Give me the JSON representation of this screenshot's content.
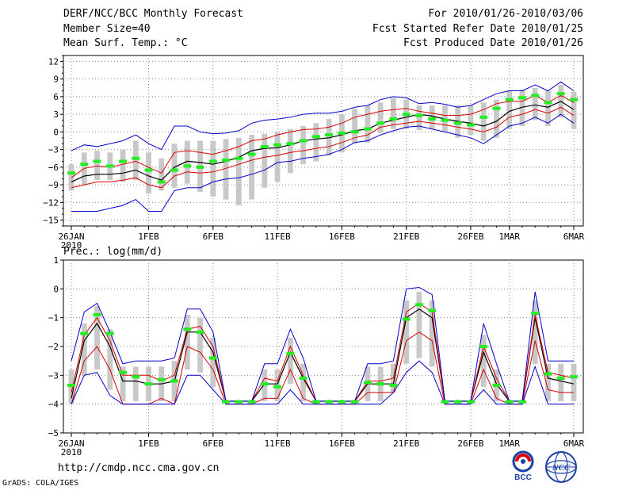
{
  "header": {
    "title": "DERF/NCC/BCC Monthly Forecast",
    "member_size": "Member Size=40",
    "variable": "Mean Surf. Temp.: °C",
    "period": "For 2010/01/26-2010/03/06",
    "refer_date": "Fcst Started Refer Date 2010/01/25",
    "produced_date": "Fcst Produced Date 2010/01/26"
  },
  "footer": {
    "url": "http://cmdp.ncc.cma.gov.cn",
    "credit": "GrADS: COLA/IGES",
    "logo_bcc": "BCC",
    "logo_ncc": "NCC"
  },
  "colors": {
    "ensemble_bar": "#c8c8c8",
    "mean_line": "#000000",
    "inner_band": "#d80000",
    "outer_band": "#0000d0",
    "green_marker": "#22ee22",
    "grid": "#888888"
  },
  "chart_data": [
    {
      "type": "line",
      "title": "Mean Surf. Temp.: °C",
      "x_ticks": [
        "26JAN",
        "1FEB",
        "6FEB",
        "11FEB",
        "16FEB",
        "21FEB",
        "26FEB",
        "1MAR",
        "6MAR"
      ],
      "x_tick_day_index": [
        0,
        6,
        11,
        16,
        21,
        26,
        31,
        34,
        39
      ],
      "x_sublabel": "2010",
      "ylim": [
        -16,
        13
      ],
      "y_ticks": [
        12,
        9,
        6,
        3,
        0,
        -3,
        -6,
        -9,
        -12,
        -15
      ],
      "y_tick_labels": [
        "12",
        "9",
        "6",
        "3",
        "0",
        "−3",
        "−6",
        "−9",
        "−12",
        "−15"
      ],
      "ylabel": "",
      "series": [
        {
          "name": "ensemble mean",
          "color": "#000000",
          "values": [
            -8.5,
            -7.5,
            -7.2,
            -7.2,
            -7.0,
            -6.5,
            -7.5,
            -8.2,
            -6,
            -5,
            -5.2,
            -5.5,
            -5,
            -4.3,
            -3.2,
            -2.8,
            -2.7,
            -2.2,
            -1.5,
            -1.2,
            -1,
            -0.5,
            0.2,
            0.5,
            1.5,
            2,
            2.5,
            3,
            2.7,
            2.2,
            1.8,
            1.5,
            1,
            1.8,
            3.5,
            4.2,
            4.6,
            4.2,
            5.2,
            3.8
          ]
        },
        {
          "name": "upper red",
          "color": "#d80000",
          "values": [
            -7.8,
            -6.2,
            -5.8,
            -6.0,
            -5.5,
            -5.0,
            -6.0,
            -7.0,
            -3.5,
            -3.2,
            -3.5,
            -3.8,
            -3.2,
            -2.5,
            -1.5,
            -1.2,
            -0.5,
            0,
            0.4,
            0.5,
            0.8,
            1.5,
            2.5,
            3,
            3.5,
            3.8,
            4,
            3.5,
            3.2,
            2.8,
            2.8,
            3,
            3.8,
            4.8,
            5.2,
            5.2,
            6.2,
            5,
            6.2,
            5
          ]
        },
        {
          "name": "lower red",
          "color": "#d80000",
          "values": [
            -9.5,
            -9,
            -8.5,
            -8.5,
            -8.2,
            -7.8,
            -9,
            -9.5,
            -7.5,
            -6.8,
            -7,
            -6.8,
            -6.2,
            -5.5,
            -4.8,
            -4.3,
            -4,
            -3.5,
            -3.2,
            -2.8,
            -2.5,
            -1.8,
            -1,
            -0.5,
            0.8,
            1.2,
            1.5,
            1.8,
            1.5,
            1.2,
            0.8,
            0.5,
            0,
            0.8,
            2.5,
            3,
            3.8,
            3.2,
            4.2,
            2.8
          ]
        },
        {
          "name": "upper blue",
          "color": "#0000d0",
          "values": [
            -3.2,
            -2.2,
            -2.5,
            -2,
            -1.5,
            -0.5,
            -2,
            -3,
            1,
            1,
            0,
            -0.3,
            -0.2,
            0.2,
            1.5,
            2,
            2.2,
            2.5,
            3,
            3.2,
            3.2,
            3.5,
            4.2,
            4.5,
            5.5,
            6,
            5.8,
            4.8,
            5,
            4.7,
            4.2,
            4.5,
            5.5,
            6.5,
            7,
            7,
            8,
            7,
            8.5,
            7
          ]
        },
        {
          "name": "lower blue",
          "color": "#0000d0",
          "values": [
            -13.5,
            -13.5,
            -13.5,
            -13,
            -12.5,
            -11.5,
            -13.5,
            -13.5,
            -10,
            -9.5,
            -9.5,
            -8.5,
            -8,
            -7.8,
            -7.2,
            -6.5,
            -5.2,
            -5,
            -4.5,
            -4.2,
            -3.8,
            -3,
            -1.8,
            -1.5,
            -0.5,
            0.2,
            0.8,
            1,
            0.5,
            0,
            -0.5,
            -1,
            -2,
            -0.5,
            1,
            1.5,
            2.5,
            1.5,
            3,
            1.5
          ]
        },
        {
          "name": "observation (green)",
          "color": "#22ee22",
          "values": [
            -7,
            -5.5,
            -5,
            -5.8,
            -5,
            -4.5,
            -6.5,
            -8.5,
            -6.5,
            -5.8,
            -6,
            -5,
            -4.8,
            -4.5,
            -3.8,
            -2.5,
            -2.2,
            -2,
            -1.5,
            -0.8,
            -0.5,
            -0.2,
            0,
            0.5,
            1.5,
            2.2,
            3,
            2.8,
            2.2,
            2,
            1.5,
            1.2,
            2.5,
            4,
            5.5,
            5.8,
            6.2,
            5,
            6.5,
            5.5
          ]
        }
      ],
      "ensemble_bars": {
        "low": [
          -10,
          -9,
          -8.2,
          -8.2,
          -8.5,
          -8.2,
          -10.5,
          -10,
          -9.5,
          -8.8,
          -10.2,
          -11,
          -11.5,
          -12.5,
          -11.5,
          -9.5,
          -8.5,
          -7,
          -5.5,
          -5,
          -4,
          -3.5,
          -2,
          -1.8,
          -0.2,
          0.5,
          0.5,
          0.3,
          0.5,
          0,
          -1,
          -0.5,
          -1.5,
          -1,
          0.5,
          1,
          2,
          1,
          2.5,
          0.5
        ],
        "high": [
          -5.5,
          -3.5,
          -3.2,
          -3.5,
          -3,
          -1.5,
          -3.5,
          -4.5,
          -2,
          -1.5,
          -1.5,
          -1.5,
          -1.2,
          -1,
          -0.5,
          -0.3,
          0,
          0.5,
          1,
          1.5,
          2.2,
          3,
          4,
          4.5,
          5,
          5.8,
          5.5,
          4.5,
          4.5,
          4.5,
          4.5,
          4.5,
          5,
          5.5,
          7,
          7.2,
          7.5,
          7,
          8,
          6.8
        ]
      }
    },
    {
      "type": "line",
      "title": "Prec.: log(mm/d)",
      "x_ticks": [
        "26JAN",
        "1FEB",
        "6FEB",
        "11FEB",
        "16FEB",
        "21FEB",
        "26FEB",
        "1MAR",
        "6MAR"
      ],
      "x_tick_day_index": [
        0,
        6,
        11,
        16,
        21,
        26,
        31,
        34,
        39
      ],
      "x_sublabel": "2010",
      "ylim": [
        -5,
        1
      ],
      "y_ticks": [
        1,
        0,
        -1,
        -2,
        -3,
        -4,
        -5
      ],
      "y_tick_labels": [
        "1",
        "0",
        "−1",
        "−2",
        "−3",
        "−4",
        "−5"
      ],
      "ylabel": "",
      "series": [
        {
          "name": "ensemble mean",
          "color": "#000000",
          "values": [
            -3.8,
            -1.8,
            -1.2,
            -2,
            -3.2,
            -3.2,
            -3.3,
            -3.3,
            -3.2,
            -1.5,
            -1.5,
            -2.2,
            -3.9,
            -3.9,
            -3.9,
            -3.3,
            -3.3,
            -2.2,
            -3.1,
            -3.9,
            -3.9,
            -3.9,
            -3.9,
            -3.3,
            -3.3,
            -3.3,
            -1,
            -0.7,
            -1,
            -3.9,
            -3.9,
            -3.9,
            -2.2,
            -3.3,
            -3.9,
            -3.9,
            -1,
            -3.1,
            -3.2,
            -3.3
          ]
        },
        {
          "name": "upper red",
          "color": "#d80000",
          "values": [
            -3.6,
            -1.6,
            -1.0,
            -1.8,
            -3.0,
            -3.0,
            -3.0,
            -3.2,
            -3.0,
            -1.4,
            -1.3,
            -2.0,
            -3.9,
            -3.9,
            -3.9,
            -3.1,
            -3.2,
            -2.0,
            -3.0,
            -3.9,
            -3.9,
            -3.9,
            -3.9,
            -3.2,
            -3.2,
            -3.1,
            -0.8,
            -0.5,
            -0.8,
            -3.9,
            -3.9,
            -3.9,
            -2.0,
            -3.1,
            -3.9,
            -3.9,
            -0.9,
            -2.9,
            -3.0,
            -3.1
          ]
        },
        {
          "name": "lower red",
          "color": "#d80000",
          "values": [
            -4,
            -2.5,
            -2,
            -2.8,
            -4,
            -4,
            -4,
            -3.8,
            -4,
            -2,
            -2.2,
            -2.8,
            -4,
            -4,
            -4,
            -3.8,
            -3.8,
            -2.8,
            -3.8,
            -4,
            -4,
            -4,
            -4,
            -3.6,
            -3.6,
            -3.6,
            -1.8,
            -1.5,
            -1.8,
            -4,
            -4,
            -4,
            -2.8,
            -3.8,
            -4,
            -4,
            -1.8,
            -3.5,
            -3.6,
            -3.6
          ]
        },
        {
          "name": "upper blue",
          "color": "#0000d0",
          "values": [
            -2.5,
            -0.8,
            -0.5,
            -1.5,
            -2.6,
            -2.5,
            -2.5,
            -2.5,
            -2.4,
            -0.7,
            -0.7,
            -1.5,
            -3.9,
            -3.9,
            -3.9,
            -2.6,
            -2.6,
            -1.4,
            -2.4,
            -3.9,
            -3.9,
            -3.9,
            -3.9,
            -2.6,
            -2.6,
            -2.5,
            0,
            0.05,
            -0.2,
            -3.9,
            -3.9,
            -3.9,
            -1.2,
            -2.6,
            -3.9,
            -3.9,
            -0.1,
            -2.5,
            -2.5,
            -2.5
          ]
        },
        {
          "name": "lower blue",
          "color": "#0000d0",
          "values": [
            -4,
            -3,
            -2.9,
            -3.7,
            -4,
            -4,
            -4,
            -4,
            -4,
            -3,
            -3,
            -3.5,
            -4,
            -4,
            -4,
            -4,
            -4,
            -3.5,
            -4,
            -4,
            -4,
            -4,
            -4,
            -4,
            -4,
            -3.6,
            -2.9,
            -2.5,
            -2.9,
            -4,
            -4,
            -4,
            -3.5,
            -4,
            -4,
            -4,
            -2.7,
            -4,
            -4,
            -4
          ]
        },
        {
          "name": "observation (green)",
          "color": "#22ee22",
          "values": [
            -3.35,
            -1.55,
            -0.9,
            -1.55,
            -2.9,
            -3.05,
            -3.3,
            -3.15,
            -3.2,
            -1.4,
            -1.5,
            -2.4,
            -3.92,
            -3.92,
            -3.92,
            -3.3,
            -3.4,
            -2.25,
            -3.1,
            -3.92,
            -3.92,
            -3.92,
            -3.92,
            -3.25,
            -3.3,
            -3.35,
            -1.05,
            -0.55,
            -0.75,
            -3.92,
            -3.92,
            -3.92,
            -2.0,
            -3.35,
            -3.92,
            -3.92,
            -0.85,
            -2.95,
            -3.1,
            -3.05
          ]
        }
      ],
      "ensemble_bars": {
        "low": [
          -4,
          -3,
          -2.8,
          -3.5,
          -3.9,
          -3.9,
          -3.9,
          -3.9,
          -3.9,
          -2.8,
          -2.9,
          -3.4,
          -3.95,
          -3.95,
          -3.95,
          -3.9,
          -3.9,
          -3.3,
          -3.9,
          -3.95,
          -3.95,
          -3.95,
          -3.95,
          -3.9,
          -3.9,
          -3.6,
          -2.6,
          -2.4,
          -2.7,
          -3.95,
          -3.95,
          -3.95,
          -3.4,
          -3.9,
          -3.95,
          -3.95,
          -2.6,
          -3.9,
          -3.9,
          -3.9
        ],
        "high": [
          -2.8,
          -1.2,
          -0.6,
          -1.4,
          -2.7,
          -2.7,
          -2.7,
          -2.7,
          -2.5,
          -0.9,
          -1,
          -1.7,
          -3.85,
          -3.85,
          -3.85,
          -2.8,
          -2.8,
          -1.7,
          -2.6,
          -3.85,
          -3.85,
          -3.85,
          -3.85,
          -2.7,
          -2.7,
          -2.6,
          -0.4,
          -0.1,
          -0.4,
          -3.85,
          -3.85,
          -3.85,
          -1.6,
          -2.8,
          -3.85,
          -3.85,
          -0.4,
          -2.6,
          -2.6,
          -2.6
        ]
      }
    }
  ]
}
